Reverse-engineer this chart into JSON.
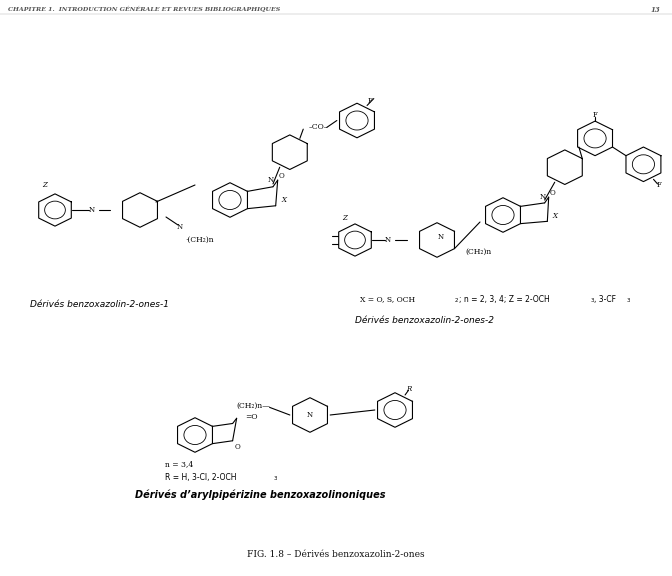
{
  "bg_color": "#ffffff",
  "text_color": "#000000",
  "header": "CHAPITRE 1.  INTRODUCTION GÉNÉRALE ET REVUES BIBLIOGRAPHIQUES",
  "page_num": "13",
  "caption": "FIG. 1.8 – Dérivés benzoxazolin-2-ones",
  "label1": "Dérivés benzoxazolin-2-ones-1",
  "label2": "Dérivés benzoxazolin-2-ones-2",
  "label3": "Dérivés d’arylpipérizine benzoxazolinoniques",
  "formula1": "X = O, S, OCH",
  "formula1_sub": "2",
  "formula1_rest": "; n = 2, 3, 4; Z = 2-OCH",
  "formula1_sub2": "3",
  "formula1_rest2": ", 3-CF",
  "formula1_sub3": "3",
  "formula2": "n = 3,4",
  "formula3_start": "R = H, 3-Cl, 2-OCH",
  "formula3_sub": "3"
}
